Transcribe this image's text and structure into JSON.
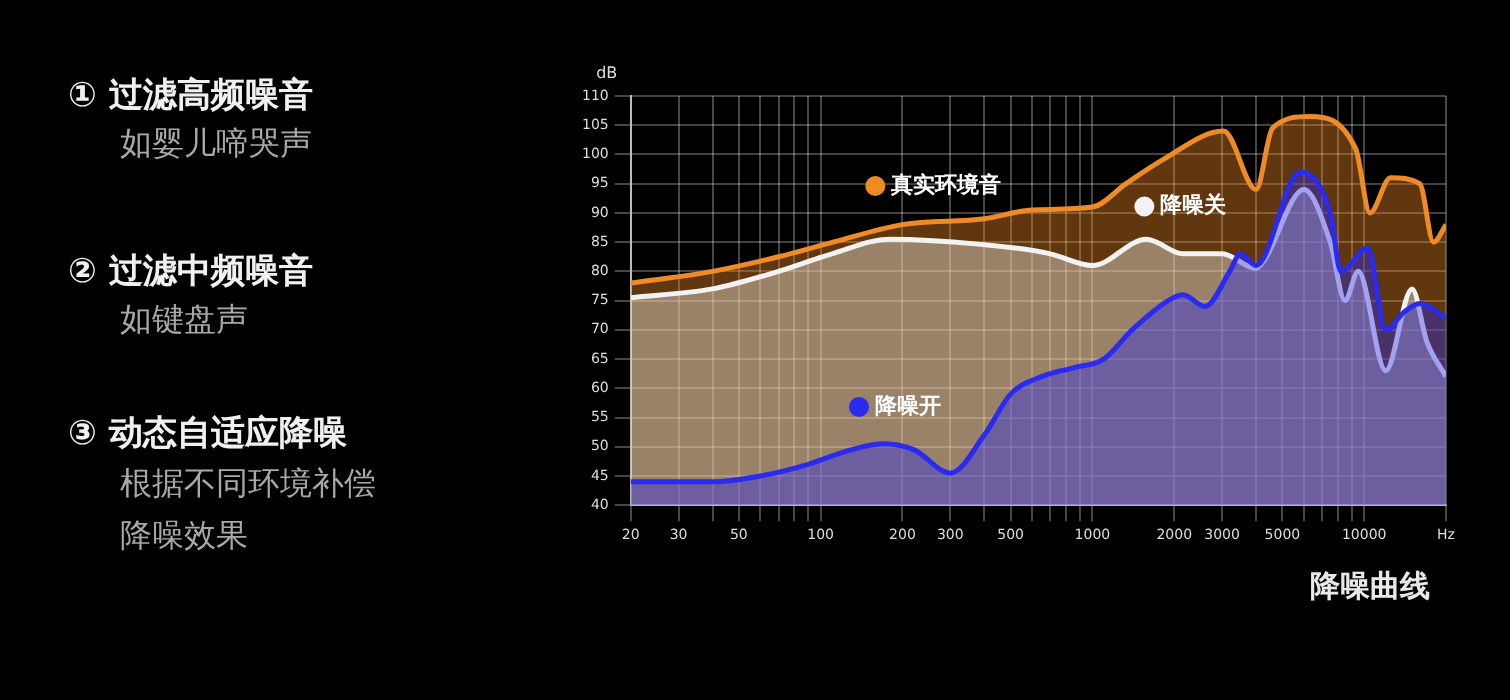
{
  "chart_data": {
    "type": "area",
    "ylabel": "dB",
    "log": "x",
    "grid": true,
    "legend": "top left",
    "marker": "none",
    "xlim": [
      20,
      20000
    ],
    "ylim": [
      40,
      110
    ],
    "xticks": [
      20,
      30,
      {
        "value": 40,
        "label": null
      },
      50,
      {
        "value": 60,
        "label": null
      },
      {
        "value": 70,
        "label": null
      },
      {
        "value": 80,
        "label": null
      },
      {
        "value": 90,
        "label": null
      },
      100,
      200,
      300,
      {
        "value": 400,
        "label": null
      },
      500,
      {
        "value": 600,
        "label": null
      },
      {
        "value": 700,
        "label": null
      },
      {
        "value": 800,
        "label": null
      },
      {
        "value": 900,
        "label": null
      },
      1000,
      2000,
      3000,
      {
        "value": 4000,
        "label": null
      },
      5000,
      {
        "value": 6000,
        "label": null
      },
      {
        "value": 7000,
        "label": null
      },
      {
        "value": 8000,
        "label": null
      },
      {
        "value": 9000,
        "label": null
      },
      10000,
      {
        "value": 20000,
        "label": "Hz"
      }
    ],
    "yticks": [
      40,
      45,
      50,
      55,
      60,
      65,
      70,
      75,
      80,
      85,
      90,
      95,
      100,
      105,
      110
    ],
    "series": [
      {
        "name": "真实环境音",
        "color": "#f08a24",
        "x": [
          20,
          40,
          70,
          111,
          200,
          400,
          600,
          1000,
          1330,
          1800,
          3040,
          4000,
          4600,
          6300,
          9300,
          10500,
          12500,
          16000,
          18000,
          20000
        ],
        "values": [
          78,
          80,
          82.5,
          85,
          88,
          89,
          90.5,
          91,
          95,
          99,
          104,
          94,
          104.5,
          106.5,
          101,
          90,
          96,
          95,
          85,
          88
        ]
      },
      {
        "name": "降噪关",
        "color": "#f2f2f2",
        "x": [
          20,
          40,
          70,
          110,
          180,
          250,
          520,
          700,
          1000,
          1580,
          2160,
          3000,
          4000,
          4300,
          6000,
          7500,
          8500,
          9500,
          12000,
          15000,
          17000,
          20000
        ],
        "values": [
          75.5,
          77,
          80,
          83,
          85.5,
          85.3,
          84,
          83,
          81,
          85.5,
          83,
          83,
          80.5,
          82,
          94,
          85,
          75,
          80,
          63,
          77,
          68,
          62
        ]
      },
      {
        "name": "降噪开",
        "color": "#2a2af0",
        "x": [
          20,
          40,
          60,
          90,
          130,
          170,
          220,
          300,
          400,
          500,
          650,
          850,
          1100,
          1400,
          1900,
          2150,
          2600,
          3200,
          3500,
          4000,
          5800,
          7500,
          8200,
          10300,
          12000,
          14000,
          16000,
          20000
        ],
        "values": [
          44,
          44,
          45,
          47,
          49.5,
          50.5,
          49.5,
          45.5,
          52,
          59,
          62,
          63.5,
          65,
          70,
          75,
          76,
          74,
          80,
          83,
          81,
          97,
          90,
          80,
          84,
          70,
          73,
          74.5,
          72
        ]
      }
    ],
    "annotations": [
      "① 过滤高频噪音",
      "如婴儿啼哭声",
      "② 过滤中频噪音",
      "如键盘声",
      "③ 动态自适应降噪",
      "根据不同环境补偿",
      "降噪效果",
      "降噪曲线"
    ]
  }
}
